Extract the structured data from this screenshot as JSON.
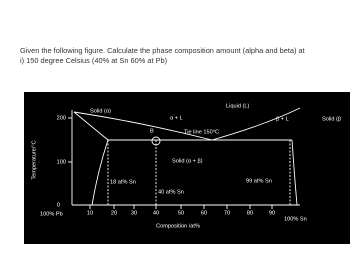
{
  "question": [
    "Given the following figure. Calculate the phase composition amount (alpha and beta) at",
    "i) 150 degree Celsius (40% at Sn 60% at Pb)"
  ],
  "figure": {
    "y_label": "Temperature/°C",
    "x_label": "Composition /at%",
    "y_ticks": [
      "200",
      "100",
      "0"
    ],
    "x_ticks": [
      "10",
      "20",
      "30",
      "40",
      "50",
      "60",
      "70",
      "80",
      "90"
    ],
    "left_end": "100% Pb",
    "right_end": "100% Sn",
    "regions": [
      "Solid (α)",
      "α + L",
      "Liquid (L)",
      "β + L",
      "Solid (β",
      "Solid (α + β)"
    ],
    "tie_line": "Tie line 150°C",
    "point": "B",
    "compositions": [
      "18 at% Sn",
      "40 at% Sn",
      "99 at% Sn"
    ]
  }
}
